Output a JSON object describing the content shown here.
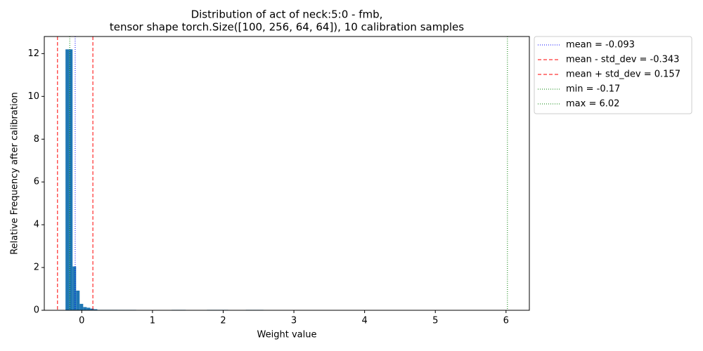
{
  "chart_data": {
    "type": "histogram",
    "title": "Distribution of act of neck:5:0 - fmb,",
    "subtitle": "tensor shape torch.Size([100, 256, 64, 64]), 10 calibration samples",
    "x_label": "Weight value",
    "y_label": "Relative Frequency after calibration",
    "color": "#1f77b4",
    "bins": [
      -0.23,
      -0.18,
      -0.13,
      -0.08,
      -0.03,
      0.02,
      0.07,
      0.12,
      0.17,
      0.22,
      0.27,
      0.32,
      0.37,
      0.42,
      0.47,
      0.52,
      0.57,
      0.62,
      0.67,
      0.72,
      0.77,
      0.82,
      0.87,
      0.92,
      0.97,
      1.02,
      1.07,
      1.12,
      1.17,
      1.22,
      1.27,
      1.32,
      1.37,
      1.42,
      1.47,
      1.52,
      1.57,
      1.62,
      1.67,
      1.72,
      1.77,
      1.82,
      1.87,
      1.92,
      1.97,
      2.02,
      2.07,
      2.12,
      2.17,
      2.22,
      2.27,
      2.32,
      2.37,
      2.42,
      2.47,
      2.52,
      2.57
    ],
    "values": [
      12.2,
      12.2,
      2.05,
      0.92,
      0.3,
      0.15,
      0.12,
      0.08,
      0.05,
      0.02,
      0.02,
      0.02,
      0.02,
      0.02,
      0.02,
      0.02,
      0.02,
      0.02,
      0.02,
      0.02,
      0,
      0,
      0,
      0,
      0,
      0,
      0,
      0,
      0,
      0,
      0.02,
      0.02,
      0.02,
      0.02,
      0,
      0,
      0,
      0,
      0,
      0,
      0.02,
      0.02,
      0.02,
      0.02,
      0.02,
      0.02,
      0,
      0,
      0,
      0,
      0,
      0.02,
      0.02,
      0.02,
      0.02,
      0.02
    ],
    "lines": [
      {
        "label": "mean = -0.093",
        "x": -0.093,
        "color": "blue",
        "style": "dotted"
      },
      {
        "label": "mean - std_dev = -0.343",
        "x": -0.343,
        "color": "red",
        "style": "dashed"
      },
      {
        "label": "mean + std_dev = 0.157",
        "x": 0.157,
        "color": "red",
        "style": "dashed"
      },
      {
        "label": "min = -0.17",
        "x": -0.17,
        "color": "green",
        "style": "dotted"
      },
      {
        "label": "max = 6.02",
        "x": 6.02,
        "color": "green",
        "style": "dotted"
      }
    ],
    "xlim": [
      -0.53,
      6.33
    ],
    "ylim": [
      0,
      12.8
    ],
    "xticks": [
      0,
      1,
      2,
      3,
      4,
      5,
      6
    ],
    "yticks": [
      0,
      2,
      4,
      6,
      8,
      10,
      12
    ],
    "legend": "outside-upper-right"
  }
}
